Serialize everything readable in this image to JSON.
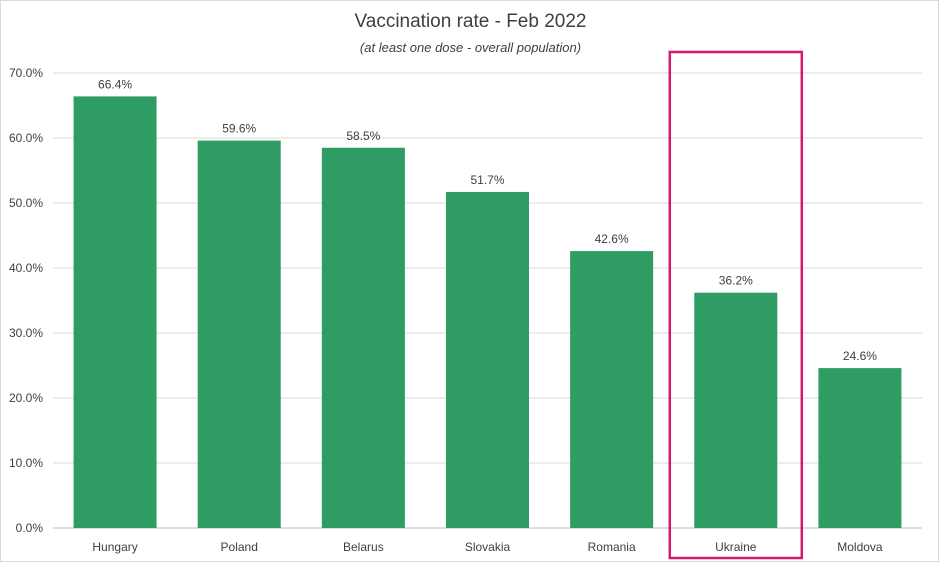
{
  "chart_data": {
    "type": "bar",
    "title": "Vaccination rate - Feb 2022",
    "subtitle": "(at least one dose - overall population)",
    "categories": [
      "Hungary",
      "Poland",
      "Belarus",
      "Slovakia",
      "Romania",
      "Ukraine",
      "Moldova"
    ],
    "values": [
      66.4,
      59.6,
      58.5,
      51.7,
      42.6,
      36.2,
      24.6
    ],
    "data_labels": [
      "66.4%",
      "59.6%",
      "58.5%",
      "51.7%",
      "42.6%",
      "36.2%",
      "24.6%"
    ],
    "y_ticks": [
      "0.0%",
      "10.0%",
      "20.0%",
      "30.0%",
      "40.0%",
      "50.0%",
      "60.0%",
      "70.0%"
    ],
    "ylim": [
      0,
      70
    ],
    "grid": true,
    "highlighted_category": "Ukraine",
    "colors": {
      "bar": "#2e9c63",
      "highlight_box": "#d6196b",
      "grid": "#d9d9d9",
      "text": "#404040"
    }
  }
}
